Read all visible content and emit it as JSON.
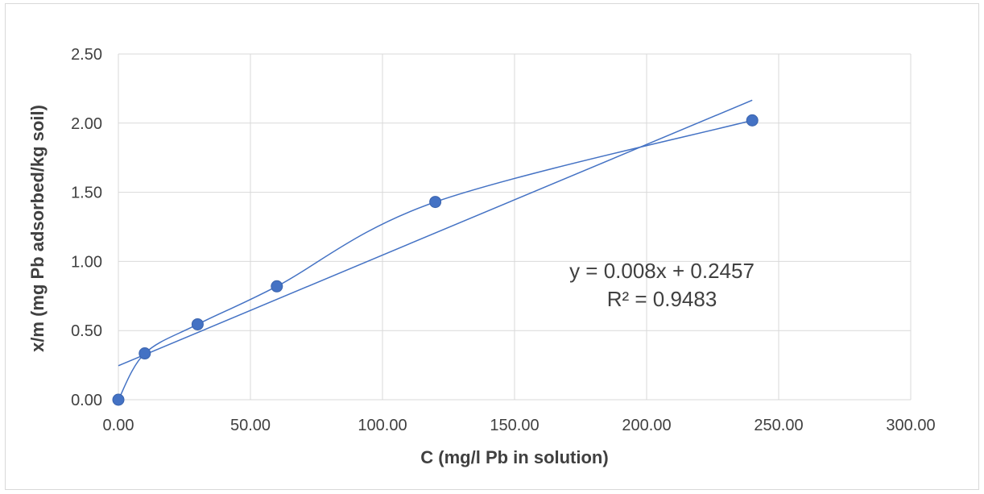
{
  "chart_data": {
    "type": "scatter",
    "title": "",
    "xlabel": "C (mg/l Pb in solution)",
    "ylabel": "x/m (mg  Pb adsorbed/kg soil)",
    "xlim": [
      0,
      300
    ],
    "ylim": [
      0,
      2.5
    ],
    "x_ticks": [
      0,
      50,
      100,
      150,
      200,
      250,
      300
    ],
    "y_ticks": [
      0,
      0.5,
      1.0,
      1.5,
      2.0,
      2.5
    ],
    "x_tick_labels": [
      "0.00",
      "50.00",
      "100.00",
      "150.00",
      "200.00",
      "250.00",
      "300.00"
    ],
    "y_tick_labels": [
      "0.00",
      "0.50",
      "1.00",
      "1.50",
      "2.00",
      "2.50"
    ],
    "grid": true,
    "series": [
      {
        "x": [
          0,
          10,
          30,
          60,
          120,
          240
        ],
        "y": [
          0.0,
          0.335,
          0.545,
          0.82,
          1.43,
          2.02
        ],
        "marker": "circle",
        "smoothed_line": true
      }
    ],
    "trendline": {
      "type": "linear",
      "slope": 0.008,
      "intercept": 0.2457,
      "x_range": [
        0,
        240
      ]
    },
    "annotations": {
      "equation": "y = 0.008x + 0.2457",
      "r_squared": "R² = 0.9483"
    },
    "colors": {
      "series": "#4472C4",
      "line": "#4472C4",
      "grid": "#d9d9d9",
      "text": "#404040"
    }
  }
}
